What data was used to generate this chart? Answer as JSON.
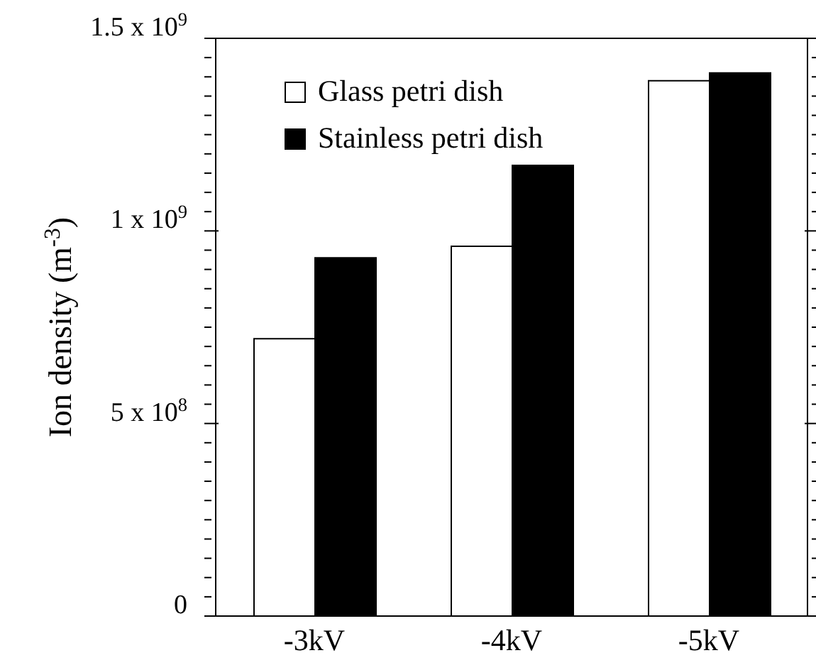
{
  "chart_data": {
    "type": "bar",
    "ylabel": "Ion density (m$^{-3}$)",
    "categories": [
      "-3kV",
      "-4kV",
      "-5kV"
    ],
    "series": [
      {
        "name": "Glass petri dish",
        "color": "#ffffff",
        "values": [
          720000000.0,
          960000000.0,
          1390000000.0
        ]
      },
      {
        "name": "Stainless petri dish",
        "color": "#000000",
        "values": [
          930000000.0,
          1170000000.0,
          1410000000.0
        ]
      }
    ],
    "ylim": [
      0,
      1500000000.0
    ],
    "yticks": [
      0,
      {
        "value": 50000000.0,
        "label": null
      },
      {
        "value": 100000000.0,
        "label": null
      },
      {
        "value": 150000000.0,
        "label": null
      },
      {
        "value": 200000000.0,
        "label": null
      },
      {
        "value": 250000000.0,
        "label": null
      },
      {
        "value": 300000000.0,
        "label": null
      },
      {
        "value": 350000000.0,
        "label": null
      },
      {
        "value": 400000000.0,
        "label": null
      },
      {
        "value": 450000000.0,
        "label": null
      },
      {
        "value": 500000000.0,
        "label": "5 x 10$^{8}$"
      },
      {
        "value": 550000000.0,
        "label": null
      },
      {
        "value": 600000000.0,
        "label": null
      },
      {
        "value": 650000000.0,
        "label": null
      },
      {
        "value": 700000000.0,
        "label": null
      },
      {
        "value": 750000000.0,
        "label": null
      },
      {
        "value": 800000000.0,
        "label": null
      },
      {
        "value": 850000000.0,
        "label": null
      },
      {
        "value": 900000000.0,
        "label": null
      },
      {
        "value": 950000000.0,
        "label": null
      },
      {
        "value": 1000000000.0,
        "label": "1 x 10$^{9}$"
      },
      {
        "value": 1050000000.0,
        "label": null
      },
      {
        "value": 1100000000.0,
        "label": null
      },
      {
        "value": 1150000000.0,
        "label": null
      },
      {
        "value": 1200000000.0,
        "label": null
      },
      {
        "value": 1250000000.0,
        "label": null
      },
      {
        "value": 1300000000.0,
        "label": null
      },
      {
        "value": 1350000000.0,
        "label": null
      },
      {
        "value": 1400000000.0,
        "label": null
      },
      {
        "value": 1450000000.0,
        "label": null
      },
      {
        "value": 1500000000.0,
        "label": "1.5 x 10$^{9}$"
      }
    ],
    "grid": false,
    "legend": "top left"
  }
}
